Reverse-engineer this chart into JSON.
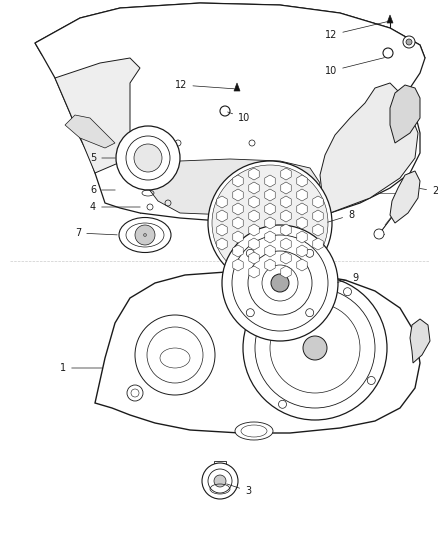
{
  "title": "",
  "background_color": "#ffffff",
  "line_color": "#1a1a1a",
  "label_color": "#1a1a1a",
  "label_fontsize": 7.0,
  "figsize": [
    4.39,
    5.33
  ],
  "dpi": 100
}
